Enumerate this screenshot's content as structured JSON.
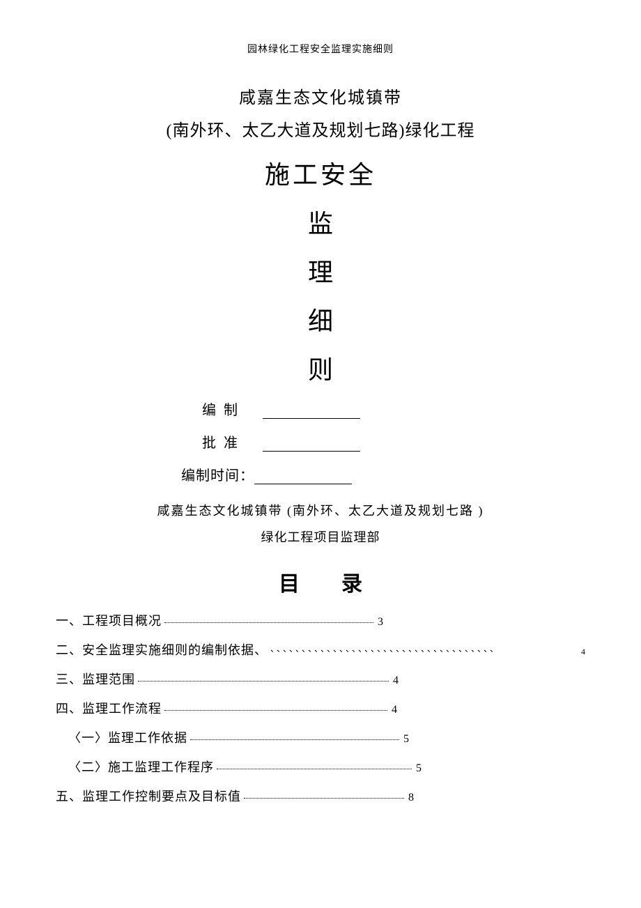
{
  "header_small": "园林绿化工程安全监理实施细则",
  "title_line_1": "咸嘉生态文化城镇带",
  "title_line_2": "(南外环、太乙大道及规划七路)绿化工程",
  "title_large": "施工安全",
  "vertical": [
    "监",
    "理",
    "细",
    "则"
  ],
  "form": {
    "bianzhi_label": "编  制",
    "pizhun_label": "批  准",
    "time_label": "编制时间："
  },
  "dept_line_1": "咸嘉生态文化城镇带  (南外环、太乙大道及规划七路    )",
  "dept_line_2": "绿化工程项目监理部",
  "toc_title": "目录",
  "toc": [
    {
      "label": "一、工程项目概况",
      "page": "3",
      "style": "short",
      "dots": "dotted"
    },
    {
      "label": "二、安全监理实施细则的编制依据、",
      "page": "4",
      "style": "wide",
      "dots": "backtick",
      "page_small": true
    },
    {
      "label": "三、监理范围",
      "page": "4",
      "style": "short2",
      "dots": "dotted"
    },
    {
      "label": "四、监理工作流程",
      "page": "4",
      "style": "short3",
      "dots": "dotted"
    },
    {
      "label": "〈一〉监理工作依据",
      "page": "5",
      "style": "short",
      "dots": "dotted",
      "sub": true
    },
    {
      "label": "〈二〉施工监理工作程序",
      "page": "5",
      "style": "mid",
      "dots": "dotted",
      "sub": true
    },
    {
      "label": "五、监理工作控制要点及目标值",
      "page": "8",
      "style": "short4",
      "dots": "dotted"
    }
  ],
  "colors": {
    "text": "#000000",
    "background": "#ffffff"
  },
  "fonts": {
    "body_family": "SimSun",
    "header_small_size": 14,
    "title_size": 24,
    "title_large_size": 36,
    "form_size": 20,
    "dept_size": 18,
    "toc_title_size": 30,
    "toc_item_size": 18
  }
}
